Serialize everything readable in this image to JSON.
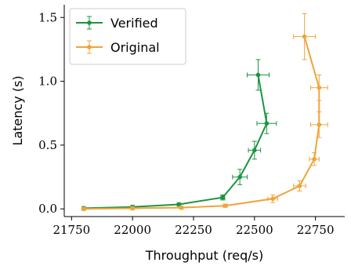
{
  "chart_data": {
    "type": "line",
    "xlabel": "Throughput (req/s)",
    "ylabel": "Latency (s)",
    "xlim": [
      21720,
      22870
    ],
    "ylim": [
      -0.06,
      1.6
    ],
    "xticks": [
      21750,
      22000,
      22250,
      22500,
      22750
    ],
    "yticks": [
      0.0,
      0.5,
      1.0,
      1.5
    ],
    "xtick_labels": [
      "21750",
      "22000",
      "22250",
      "22500",
      "22750"
    ],
    "ytick_labels": [
      "0.0",
      "0.5",
      "1.0",
      "1.5"
    ],
    "grid": false,
    "legend": "top-left",
    "series": [
      {
        "name": "Verified",
        "color": "#1a9641",
        "points": [
          {
            "x": 21800,
            "y": 0.005,
            "xerr": 5,
            "yerr": 0.01
          },
          {
            "x": 22000,
            "y": 0.015,
            "xerr": 5,
            "yerr": 0.01
          },
          {
            "x": 22190,
            "y": 0.035,
            "xerr": 5,
            "yerr": 0.01
          },
          {
            "x": 22370,
            "y": 0.09,
            "xerr": 8,
            "yerr": 0.02
          },
          {
            "x": 22440,
            "y": 0.25,
            "xerr": 30,
            "yerr": 0.06
          },
          {
            "x": 22500,
            "y": 0.46,
            "xerr": 25,
            "yerr": 0.07
          },
          {
            "x": 22550,
            "y": 0.67,
            "xerr": 40,
            "yerr": 0.08
          },
          {
            "x": 22515,
            "y": 1.05,
            "xerr": 45,
            "yerr": 0.12
          }
        ]
      },
      {
        "name": "Original",
        "color": "#f0a43a",
        "points": [
          {
            "x": 21800,
            "y": 0.0,
            "xerr": 5,
            "yerr": 0.01
          },
          {
            "x": 22000,
            "y": 0.005,
            "xerr": 5,
            "yerr": 0.01
          },
          {
            "x": 22200,
            "y": 0.01,
            "xerr": 5,
            "yerr": 0.01
          },
          {
            "x": 22380,
            "y": 0.025,
            "xerr": 8,
            "yerr": 0.01
          },
          {
            "x": 22575,
            "y": 0.08,
            "xerr": 20,
            "yerr": 0.03
          },
          {
            "x": 22685,
            "y": 0.18,
            "xerr": 25,
            "yerr": 0.04
          },
          {
            "x": 22745,
            "y": 0.39,
            "xerr": 20,
            "yerr": 0.05
          },
          {
            "x": 22765,
            "y": 0.66,
            "xerr": 35,
            "yerr": 0.1
          },
          {
            "x": 22765,
            "y": 0.95,
            "xerr": 35,
            "yerr": 0.1
          },
          {
            "x": 22705,
            "y": 1.35,
            "xerr": 45,
            "yerr": 0.18
          }
        ]
      }
    ]
  }
}
